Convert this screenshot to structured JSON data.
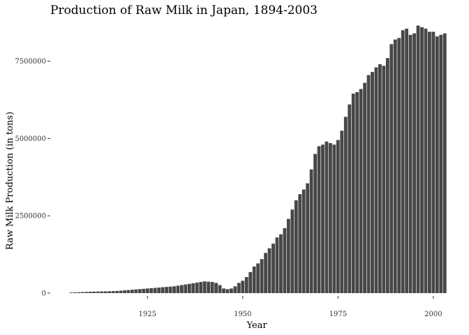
{
  "chart_data": {
    "type": "bar",
    "title": "Production of Raw Milk in Japan, 1894-2003",
    "xlabel": "Year",
    "ylabel": "Raw Milk Production (in tons)",
    "xlim": [
      1899.5,
      2003.5
    ],
    "ylim": [
      0,
      8800000
    ],
    "x_ticks": [
      1925,
      1950,
      1975,
      2000
    ],
    "y_ticks": [
      0,
      2500000,
      5000000,
      7500000
    ],
    "y_tick_labels": [
      "0",
      "2500000",
      "5000000",
      "7500000"
    ],
    "x_tick_labels": [
      "1925",
      "1950",
      "1975",
      "2000"
    ],
    "grid": false,
    "bar_color": "#474747",
    "years": [
      1905,
      1906,
      1907,
      1908,
      1909,
      1910,
      1911,
      1912,
      1913,
      1914,
      1915,
      1916,
      1917,
      1918,
      1919,
      1920,
      1921,
      1922,
      1923,
      1924,
      1925,
      1926,
      1927,
      1928,
      1929,
      1930,
      1931,
      1932,
      1933,
      1934,
      1935,
      1936,
      1937,
      1938,
      1939,
      1940,
      1941,
      1942,
      1943,
      1944,
      1945,
      1946,
      1947,
      1948,
      1949,
      1950,
      1951,
      1952,
      1953,
      1954,
      1955,
      1956,
      1957,
      1958,
      1959,
      1960,
      1961,
      1962,
      1963,
      1964,
      1965,
      1966,
      1967,
      1968,
      1969,
      1970,
      1971,
      1972,
      1973,
      1974,
      1975,
      1976,
      1977,
      1978,
      1979,
      1980,
      1981,
      1982,
      1983,
      1984,
      1985,
      1986,
      1987,
      1988,
      1989,
      1990,
      1991,
      1992,
      1993,
      1994,
      1995,
      1996,
      1997,
      1998,
      1999,
      2000,
      2001,
      2002,
      2003
    ],
    "values": [
      20000,
      25000,
      30000,
      35000,
      40000,
      45000,
      50000,
      52000,
      55000,
      58000,
      60000,
      65000,
      70000,
      80000,
      90000,
      100000,
      110000,
      120000,
      130000,
      140000,
      150000,
      160000,
      170000,
      180000,
      190000,
      200000,
      210000,
      220000,
      240000,
      260000,
      280000,
      300000,
      320000,
      340000,
      360000,
      380000,
      370000,
      360000,
      330000,
      260000,
      150000,
      130000,
      150000,
      220000,
      330000,
      400000,
      520000,
      680000,
      860000,
      960000,
      1100000,
      1300000,
      1450000,
      1600000,
      1800000,
      1900000,
      2100000,
      2400000,
      2700000,
      3000000,
      3200000,
      3350000,
      3550000,
      4000000,
      4500000,
      4750000,
      4800000,
      4900000,
      4850000,
      4800000,
      4950000,
      5250000,
      5700000,
      6100000,
      6450000,
      6500000,
      6600000,
      6800000,
      7050000,
      7150000,
      7300000,
      7400000,
      7350000,
      7600000,
      8050000,
      8200000,
      8250000,
      8500000,
      8550000,
      8350000,
      8400000,
      8650000,
      8600000,
      8550000,
      8450000,
      8450000,
      8300000,
      8350000,
      8400000
    ]
  }
}
